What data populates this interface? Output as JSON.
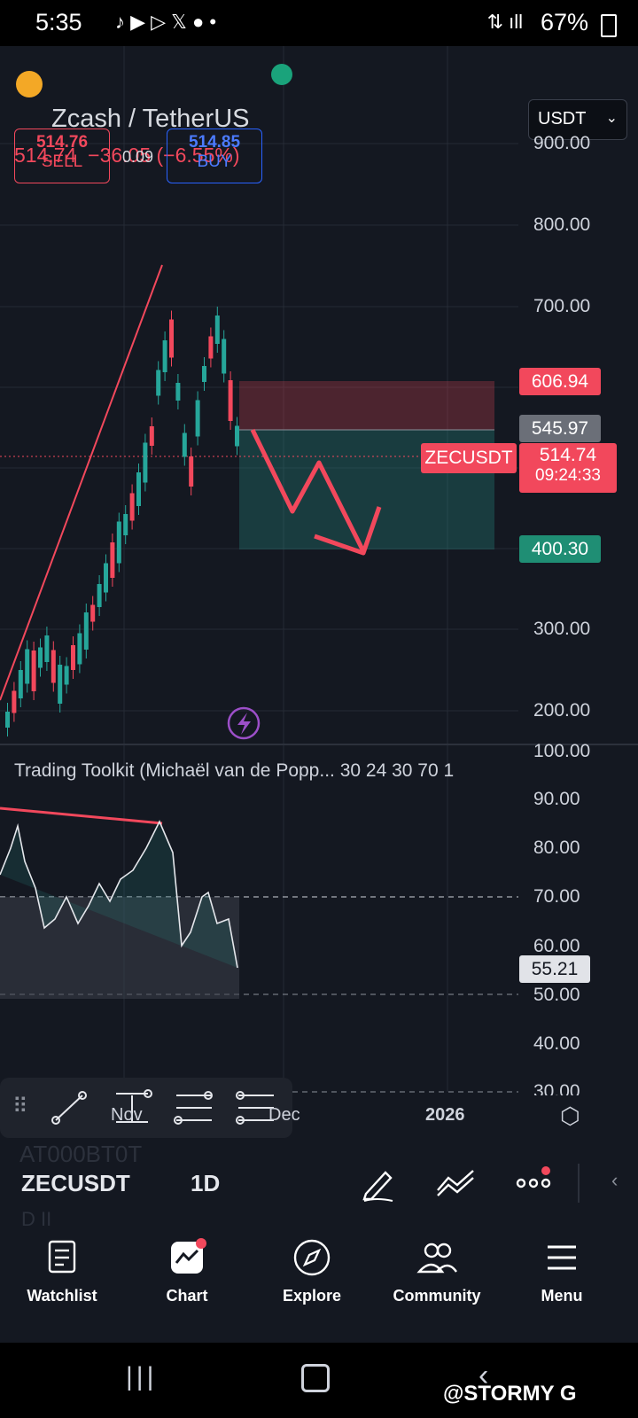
{
  "status_bar": {
    "time": "5:35",
    "battery": "67%"
  },
  "header": {
    "title": "Zcash / TetherUS",
    "price": "514.74",
    "change": "−36.05 (−6.55%)",
    "sell_price": "514.76",
    "sell_label": "SELL",
    "spread": "0.09",
    "buy_price": "514.85",
    "buy_label": "BUY",
    "currency_select": "USDT"
  },
  "price_axis": [
    "900.00",
    "800.00",
    "700.00",
    "300.00",
    "200.00"
  ],
  "price_tags": {
    "stop": "606.94",
    "entry": "545.97",
    "symbol": "ZECUSDT",
    "last": "514.74",
    "countdown": "09:24:33",
    "target": "400.30"
  },
  "indicator": {
    "label": "Trading Toolkit (Michaël van de Popp... 30 24 30 70 1",
    "axis": [
      "100.00",
      "90.00",
      "80.00",
      "70.00",
      "60.00",
      "50.00",
      "40.00",
      "30.00"
    ],
    "value": "55.21"
  },
  "time_axis": {
    "nov": "Nov",
    "dec": "Dec",
    "year": "2026"
  },
  "toolbar": {
    "symbol": "ZECUSDT",
    "interval": "1D",
    "ghost_top": "AT000BT0T",
    "ghost_bottom": "D II"
  },
  "bottom_nav": [
    {
      "label": "Watchlist",
      "icon": "list-icon"
    },
    {
      "label": "Chart",
      "icon": "chart-icon"
    },
    {
      "label": "Explore",
      "icon": "compass-icon"
    },
    {
      "label": "Community",
      "icon": "people-icon"
    },
    {
      "label": "Menu",
      "icon": "hamburger-icon"
    }
  ],
  "watermark": "@STORMY G",
  "colors": {
    "up": "#26a69a",
    "down": "#f2485c",
    "bg": "#141821",
    "buy": "#2962ff"
  },
  "chart_data": {
    "type": "candlestick",
    "symbol": "ZECUSDT",
    "interval": "1D",
    "ylim": [
      170,
      950
    ],
    "trade_plan": {
      "stop": 606.94,
      "entry": 545.97,
      "target": 400.3,
      "last": 514.74
    },
    "indicator_value": 55.21,
    "indicator_levels": [
      70,
      50
    ]
  }
}
